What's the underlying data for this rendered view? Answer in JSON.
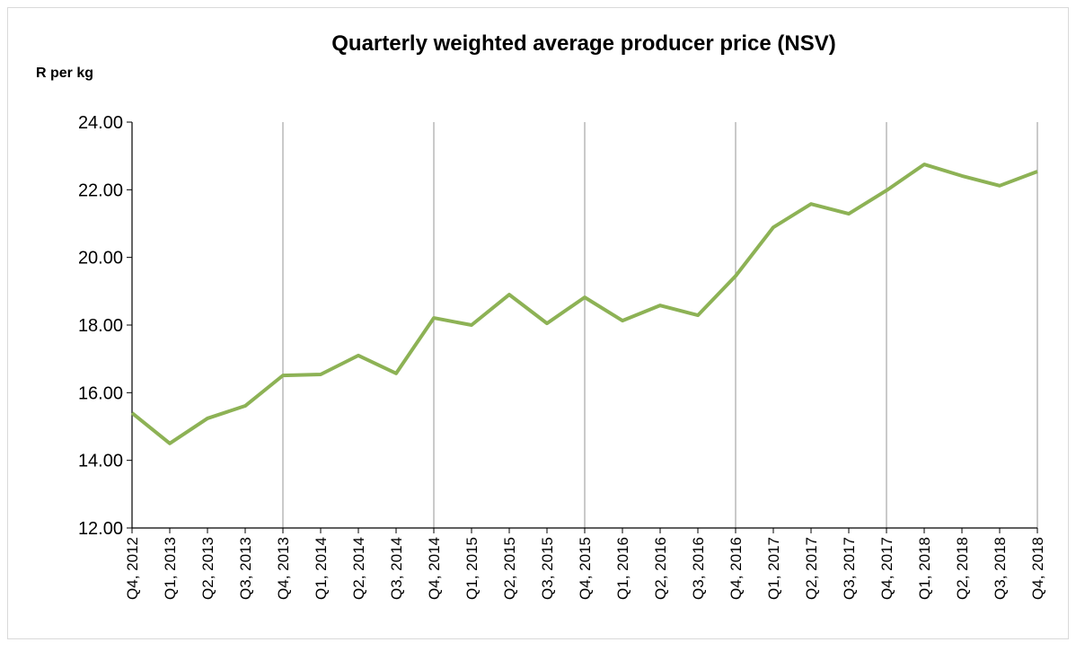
{
  "chart_data": {
    "type": "line",
    "title": "Quarterly weighted average producer price (NSV)",
    "y_label": "R per kg",
    "categories": [
      "Q4, 2012",
      "Q1, 2013",
      "Q2, 2013",
      "Q3, 2013",
      "Q4, 2013",
      "Q1, 2014",
      "Q2, 2014",
      "Q3, 2014",
      "Q4, 2014",
      "Q1, 2015",
      "Q2, 2015",
      "Q3, 2015",
      "Q4, 2015",
      "Q1, 2016",
      "Q2, 2016",
      "Q3, 2016",
      "Q4, 2016",
      "Q1, 2017",
      "Q2, 2017",
      "Q3, 2017",
      "Q4, 2017",
      "Q1, 2018",
      "Q2, 2018",
      "Q3, 2018",
      "Q4, 2018"
    ],
    "series": [
      {
        "name": "Producer price",
        "color": "#8db255",
        "values": [
          15.4,
          14.5,
          15.24,
          15.61,
          16.51,
          16.54,
          17.1,
          16.57,
          18.21,
          18.0,
          18.9,
          18.05,
          18.82,
          18.13,
          18.58,
          18.29,
          19.45,
          20.89,
          21.58,
          21.29,
          21.98,
          22.75,
          22.41,
          22.12,
          22.54
        ]
      }
    ],
    "ylim": [
      12,
      24
    ],
    "yticks": [
      {
        "value": 12,
        "label": "12.00"
      },
      {
        "value": 14,
        "label": "14.00"
      },
      {
        "value": 16,
        "label": "16.00"
      },
      {
        "value": 18,
        "label": "18.00"
      },
      {
        "value": 20,
        "label": "20.00"
      },
      {
        "value": 22,
        "label": "22.00"
      },
      {
        "value": 24,
        "label": "24.00"
      }
    ]
  }
}
